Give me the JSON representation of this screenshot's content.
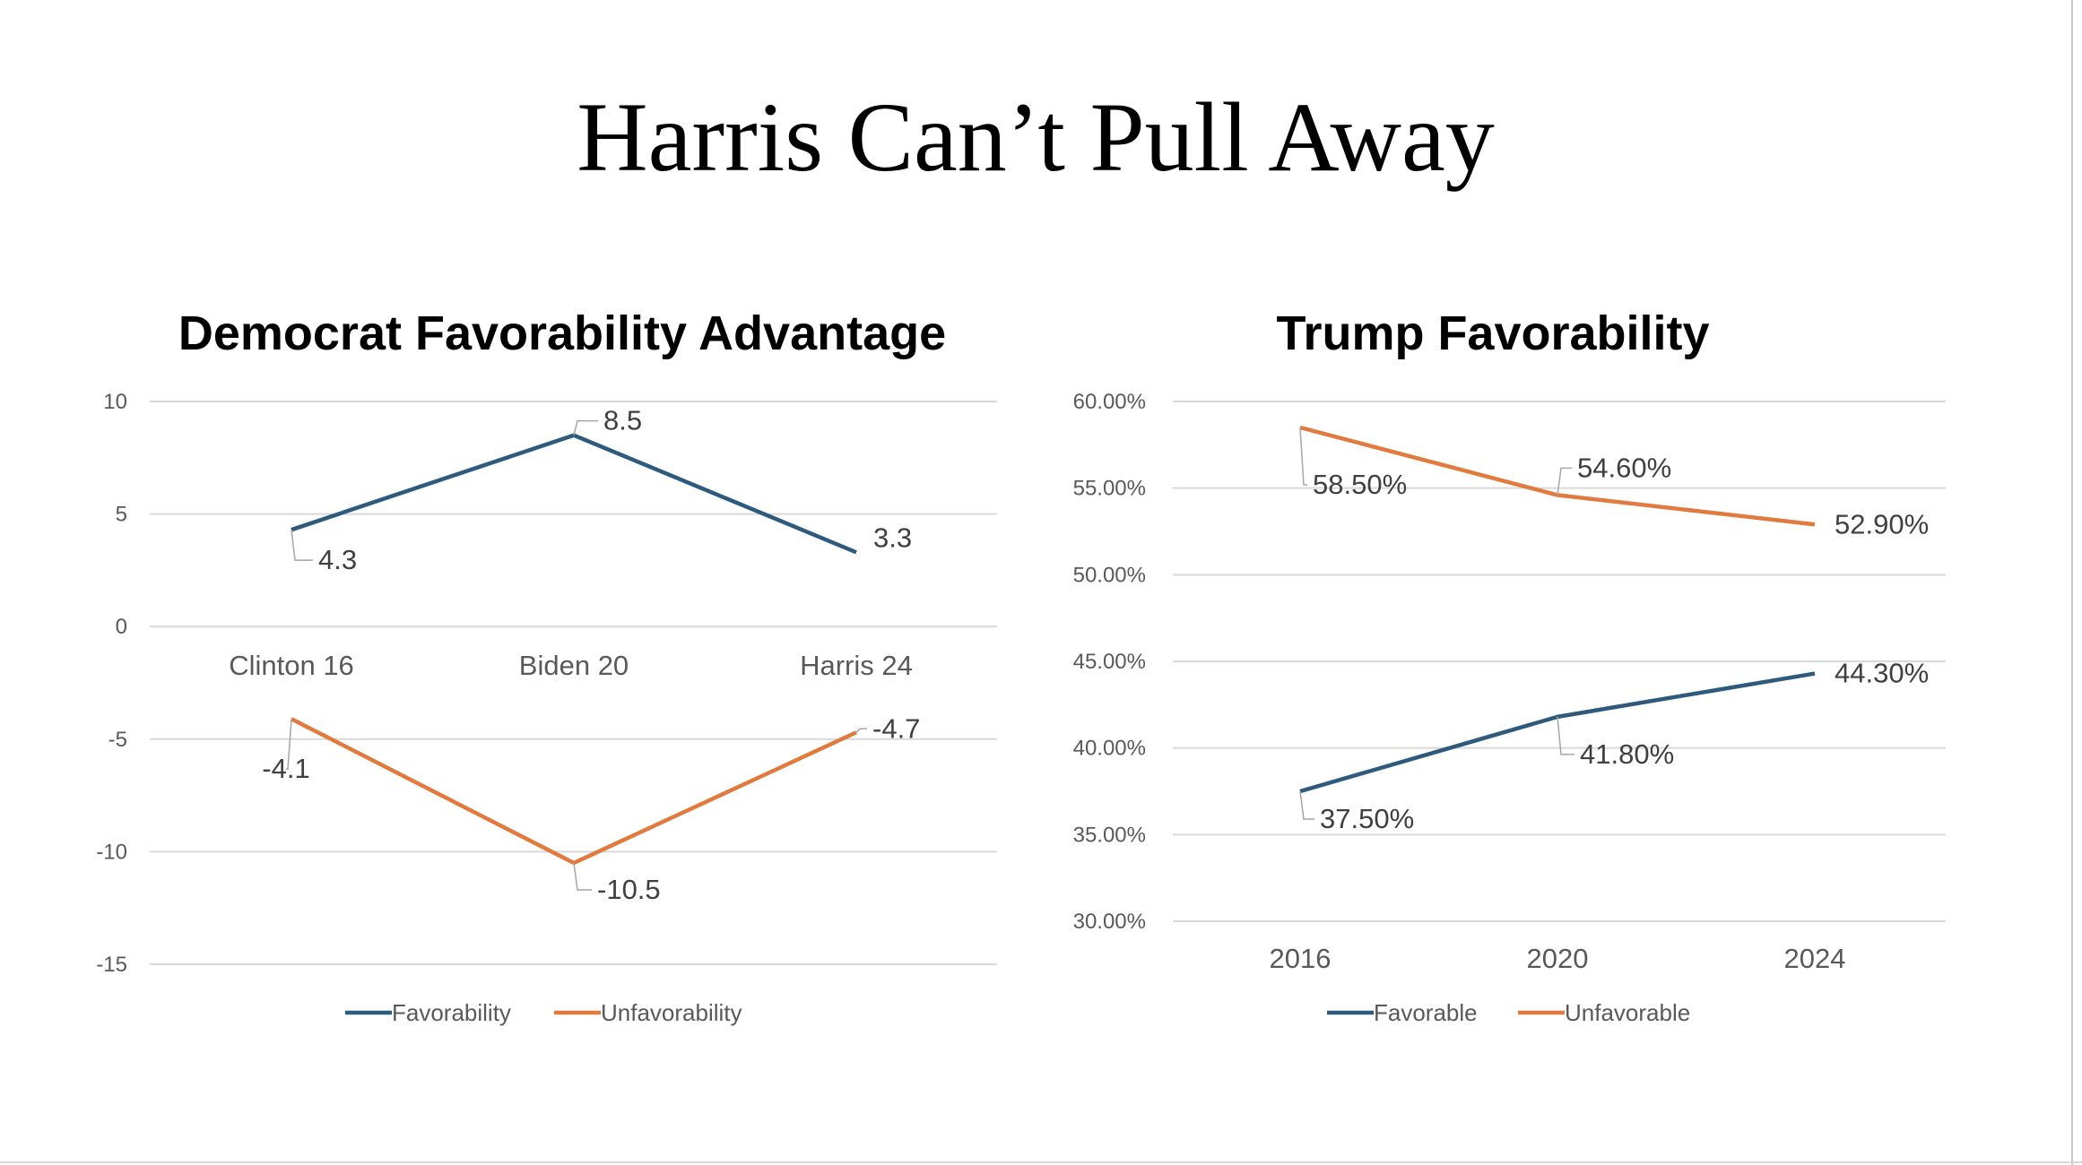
{
  "slide": {
    "title": "Harris Can’t Pull Away"
  },
  "colors": {
    "blue": "#2e5a7e",
    "orange": "#e07a3e",
    "grid": "#d9d9d9",
    "axis_text": "#595959"
  },
  "chart_data": [
    {
      "type": "line",
      "title": "Democrat Favorability Advantage",
      "categories": [
        "Clinton 16",
        "Biden 20",
        "Harris 24"
      ],
      "series": [
        {
          "name": "Favorability",
          "values": [
            4.3,
            8.5,
            3.3
          ],
          "labels": [
            "4.3",
            "8.5",
            "3.3"
          ]
        },
        {
          "name": "Unfavorability",
          "values": [
            -4.1,
            -10.5,
            -4.7
          ],
          "labels": [
            "-4.1",
            "-10.5",
            "-4.7"
          ]
        }
      ],
      "ylim": [
        -15,
        10
      ],
      "yticks": [
        10,
        5,
        0,
        -5,
        -10,
        -15
      ],
      "ytick_labels": [
        "10",
        "5",
        "0",
        "-5",
        "-10",
        "-15"
      ],
      "grid": true,
      "legend": "bottom"
    },
    {
      "type": "line",
      "title": "Trump Favorability",
      "categories": [
        "2016",
        "2020",
        "2024"
      ],
      "series": [
        {
          "name": "Favorable",
          "values": [
            37.5,
            41.8,
            44.3
          ],
          "labels": [
            "37.50%",
            "41.80%",
            "44.30%"
          ]
        },
        {
          "name": "Unfavorable",
          "values": [
            58.5,
            54.6,
            52.9
          ],
          "labels": [
            "58.50%",
            "54.60%",
            "52.90%"
          ]
        }
      ],
      "ylim": [
        30,
        60
      ],
      "yticks": [
        60,
        55,
        50,
        45,
        40,
        35,
        30
      ],
      "ytick_labels": [
        "60.00%",
        "55.00%",
        "50.00%",
        "45.00%",
        "40.00%",
        "35.00%",
        "30.00%"
      ],
      "grid": true,
      "legend": "bottom"
    }
  ]
}
